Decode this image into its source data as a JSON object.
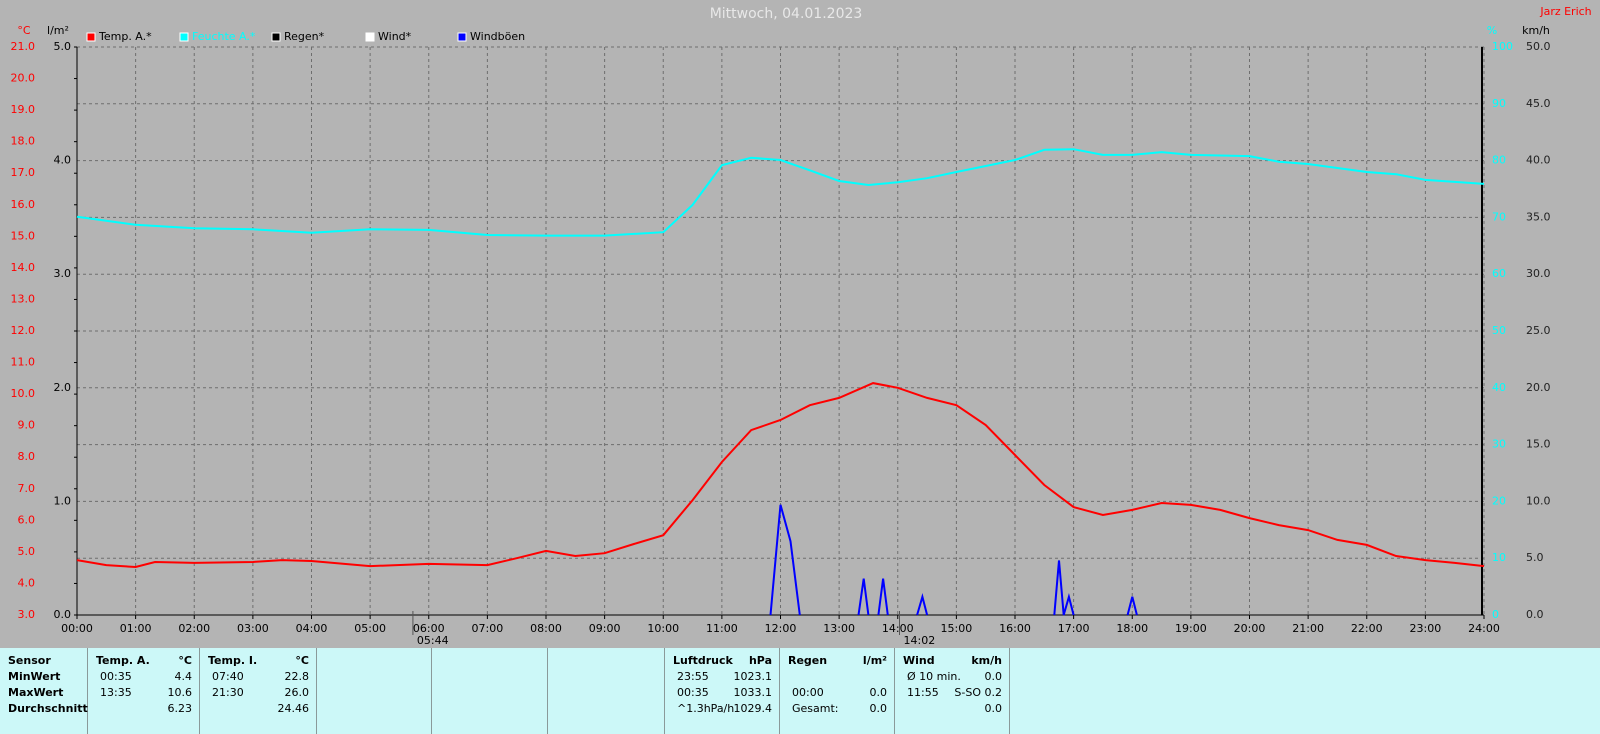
{
  "chart_data": {
    "type": "line",
    "title": "Mittwoch, 04.01.2023",
    "author": "Jarz Erich",
    "axis_units": {
      "y": "°C",
      "rain": "l/m²",
      "y2": "%",
      "y3": "km/h"
    },
    "xlim": [
      0,
      24
    ],
    "xticks": [
      {
        "value": 0,
        "label": "00:00"
      },
      {
        "value": 1,
        "label": "01:00"
      },
      {
        "value": 2,
        "label": "02:00"
      },
      {
        "value": 3,
        "label": "03:00"
      },
      {
        "value": 4,
        "label": "04:00"
      },
      {
        "value": 5,
        "label": "05:00"
      },
      {
        "value": 6,
        "label": "06:00"
      },
      {
        "value": 7,
        "label": "07:00"
      },
      {
        "value": 8,
        "label": "08:00"
      },
      {
        "value": 9,
        "label": "09:00"
      },
      {
        "value": 10,
        "label": "10:00"
      },
      {
        "value": 11,
        "label": "11:00"
      },
      {
        "value": 12,
        "label": "12:00"
      },
      {
        "value": 13,
        "label": "13:00"
      },
      {
        "value": 14,
        "label": "14:00"
      },
      {
        "value": 15,
        "label": "15:00"
      },
      {
        "value": 16,
        "label": "16:00"
      },
      {
        "value": 17,
        "label": "17:00"
      },
      {
        "value": 18,
        "label": "18:00"
      },
      {
        "value": 19,
        "label": "19:00"
      },
      {
        "value": 20,
        "label": "20:00"
      },
      {
        "value": 21,
        "label": "21:00"
      },
      {
        "value": 22,
        "label": "22:00"
      },
      {
        "value": 23,
        "label": "23:00"
      },
      {
        "value": 24,
        "label": "24:00"
      }
    ],
    "ylim": [
      3,
      21
    ],
    "yticks": [
      {
        "value": 3,
        "label": "3.0"
      },
      {
        "value": 4,
        "label": "4.0"
      },
      {
        "value": 5,
        "label": "5.0"
      },
      {
        "value": 6,
        "label": "6.0"
      },
      {
        "value": 7,
        "label": "7.0"
      },
      {
        "value": 8,
        "label": "8.0"
      },
      {
        "value": 9,
        "label": "9.0"
      },
      {
        "value": 10,
        "label": "10.0"
      },
      {
        "value": 11,
        "label": "11.0"
      },
      {
        "value": 12,
        "label": "12.0"
      },
      {
        "value": 13,
        "label": "13.0"
      },
      {
        "value": 14,
        "label": "14.0"
      },
      {
        "value": 15,
        "label": "15.0"
      },
      {
        "value": 16,
        "label": "16.0"
      },
      {
        "value": 17,
        "label": "17.0"
      },
      {
        "value": 18,
        "label": "18.0"
      },
      {
        "value": 19,
        "label": "19.0"
      },
      {
        "value": 20,
        "label": "20.0"
      },
      {
        "value": 21,
        "label": "21.0"
      }
    ],
    "rain_ylim": [
      0,
      5
    ],
    "rain_yticks": [
      {
        "value": 0,
        "label": "0.0"
      },
      {
        "value": 1,
        "label": "1.0"
      },
      {
        "value": 2,
        "label": "2.0"
      },
      {
        "value": 3,
        "label": "3.0"
      },
      {
        "value": 4,
        "label": "4.0"
      },
      {
        "value": 5,
        "label": "5.0"
      }
    ],
    "y2lim": [
      0,
      100
    ],
    "y2ticks": [
      0,
      10,
      20,
      30,
      40,
      50,
      60,
      70,
      80,
      90,
      100
    ],
    "y3lim": [
      0,
      50
    ],
    "y3ticks": [
      {
        "value": 0,
        "label": "0.0"
      },
      {
        "value": 5,
        "label": "5.0"
      },
      {
        "value": 10,
        "label": "10.0"
      },
      {
        "value": 15,
        "label": "15.0"
      },
      {
        "value": 20,
        "label": "20.0"
      },
      {
        "value": 25,
        "label": "25.0"
      },
      {
        "value": 30,
        "label": "30.0"
      },
      {
        "value": 35,
        "label": "35.0"
      },
      {
        "value": 40,
        "label": "40.0"
      },
      {
        "value": 45,
        "label": "45.0"
      },
      {
        "value": 50,
        "label": "50.0"
      }
    ],
    "grid": true,
    "series": [
      {
        "name": "Temp. A.*",
        "color": "#ff0000",
        "axis": "y",
        "x": [
          0,
          0.5,
          1,
          1.33,
          2,
          3,
          3.5,
          4,
          5,
          6,
          7,
          7.5,
          8,
          8.5,
          9,
          9.5,
          10,
          10.5,
          11,
          11.5,
          12,
          12.5,
          13,
          13.58,
          14,
          14.5,
          15,
          15.5,
          16,
          16.5,
          17,
          17.5,
          18,
          18.5,
          19,
          19.5,
          20,
          20.5,
          21,
          21.5,
          22,
          22.5,
          23,
          23.5,
          24
        ],
        "values": [
          4.74,
          4.58,
          4.52,
          4.68,
          4.65,
          4.68,
          4.74,
          4.71,
          4.55,
          4.62,
          4.58,
          4.8,
          5.03,
          4.87,
          4.96,
          5.25,
          5.53,
          6.64,
          7.85,
          8.86,
          9.18,
          9.65,
          9.88,
          10.35,
          10.2,
          9.88,
          9.65,
          9.02,
          8.07,
          7.12,
          6.42,
          6.17,
          6.33,
          6.55,
          6.49,
          6.33,
          6.07,
          5.85,
          5.69,
          5.38,
          5.22,
          4.87,
          4.74,
          4.65,
          4.55
        ]
      },
      {
        "name": "Feuchte A.*",
        "color": "#00ffff",
        "axis": "y2",
        "x": [
          0,
          1,
          2,
          3,
          4,
          5,
          6,
          7,
          8,
          9,
          10,
          10.5,
          11,
          11.5,
          12,
          12.5,
          13,
          13.5,
          14,
          14.5,
          15,
          16,
          16.5,
          17,
          17.5,
          18,
          18.5,
          19,
          20,
          20.5,
          21,
          22,
          22.5,
          23,
          24
        ],
        "values": [
          70.1,
          68.7,
          68.1,
          67.9,
          67.3,
          67.9,
          67.8,
          66.9,
          66.8,
          66.8,
          67.4,
          72.2,
          79.2,
          80.5,
          80.1,
          78.3,
          76.4,
          75.7,
          76.2,
          76.9,
          78,
          80.1,
          81.9,
          82,
          81,
          81,
          81.5,
          81,
          80.8,
          79.8,
          79.4,
          78,
          77.6,
          76.6,
          75.9
        ]
      },
      {
        "name": "Regen*",
        "color": "#000000",
        "axis": "rain",
        "x": [],
        "values": []
      },
      {
        "name": "Wind*",
        "color": "#ffffff",
        "axis": "y3",
        "x": [],
        "values": []
      },
      {
        "name": "Windböen",
        "color": "#0000ff",
        "axis": "y3",
        "x": [
          11.83,
          12,
          12.17,
          12.33,
          12.8,
          13.33,
          13.42,
          13.5,
          13.6,
          13.67,
          13.75,
          13.83,
          14.1,
          14.33,
          14.42,
          14.5,
          15.5,
          16.67,
          16.75,
          16.83,
          16.92,
          17,
          17.5,
          17.92,
          18,
          18.08
        ],
        "values": [
          0,
          9.7,
          6.5,
          0,
          null,
          0,
          3.2,
          0,
          null,
          0,
          3.2,
          0,
          null,
          0,
          1.6,
          0,
          null,
          0,
          4.8,
          0,
          1.6,
          0,
          null,
          0,
          1.6,
          0
        ]
      }
    ],
    "annotations": [
      {
        "x": 5.73,
        "label": "05:44"
      },
      {
        "x": 14.03,
        "label": "14:02"
      }
    ]
  },
  "table": {
    "panels": [
      {
        "header": [
          "Sensor"
        ],
        "rows": [
          [
            "MinWert"
          ],
          [
            "MaxWert"
          ],
          [
            "Durchschnitt"
          ]
        ]
      },
      {
        "header": [
          "Temp. A.",
          "°C"
        ],
        "rows": [
          [
            "00:35",
            "4.4"
          ],
          [
            "13:35",
            "10.6"
          ],
          [
            null,
            "6.23"
          ]
        ]
      },
      {
        "header": [
          "Temp. I.",
          "°C"
        ],
        "rows": [
          [
            "07:40",
            "22.8"
          ],
          [
            "21:30",
            "26.0"
          ],
          [
            null,
            "24.46"
          ]
        ]
      },
      {
        "header": [
          "Luftdruck",
          "hPa"
        ],
        "rows": [
          [
            "23:55",
            "1023.1"
          ],
          [
            "00:35",
            "1033.1"
          ],
          [
            "^1.3hPa/h",
            "1029.4"
          ]
        ]
      },
      {
        "header": [
          "Regen",
          "l/m²"
        ],
        "rows": [
          [
            null,
            null
          ],
          [
            "00:00",
            "0.0"
          ],
          [
            "Gesamt:",
            "0.0"
          ]
        ]
      },
      {
        "header": [
          "Wind",
          "km/h"
        ],
        "rows": [
          [
            "Ø 10 min.",
            "0.0"
          ],
          [
            "11:55",
            "S-SO 0.2"
          ],
          [
            null,
            "0.0"
          ]
        ]
      }
    ]
  }
}
